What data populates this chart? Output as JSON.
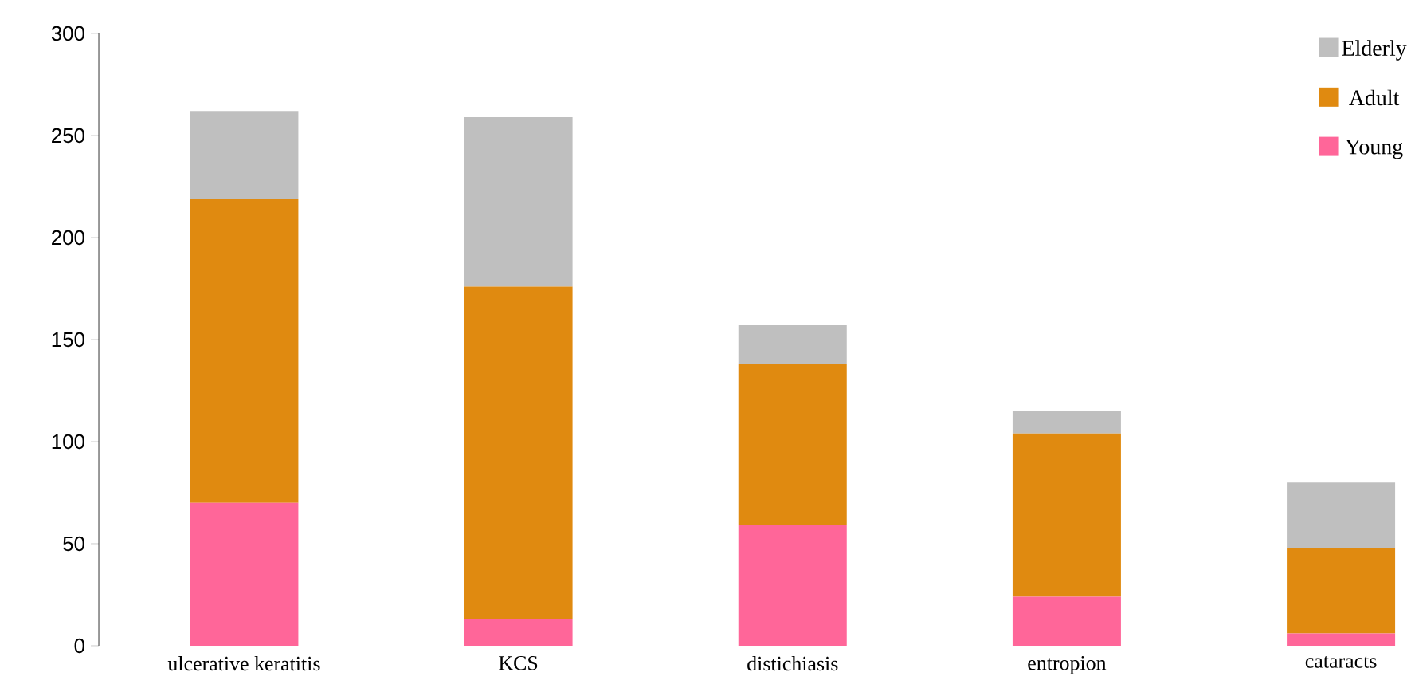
{
  "chart_data": {
    "type": "bar",
    "stacked": true,
    "categories": [
      "ulcerative keratitis",
      "KCS",
      "distichiasis",
      "entropion",
      "cataracts"
    ],
    "series": [
      {
        "name": "Young",
        "color": "#ff6699",
        "values": [
          70,
          13,
          59,
          24,
          6
        ]
      },
      {
        "name": "Adult",
        "color": "#e08a10",
        "values": [
          149,
          163,
          79,
          80,
          42
        ]
      },
      {
        "name": "Elderly",
        "color": "#bfbfbf",
        "values": [
          43,
          83,
          19,
          11,
          32
        ]
      }
    ],
    "ylim": [
      0,
      300
    ],
    "yticks": [
      0,
      50,
      100,
      150,
      200,
      250,
      300
    ],
    "grid": false,
    "legend": "top right"
  }
}
